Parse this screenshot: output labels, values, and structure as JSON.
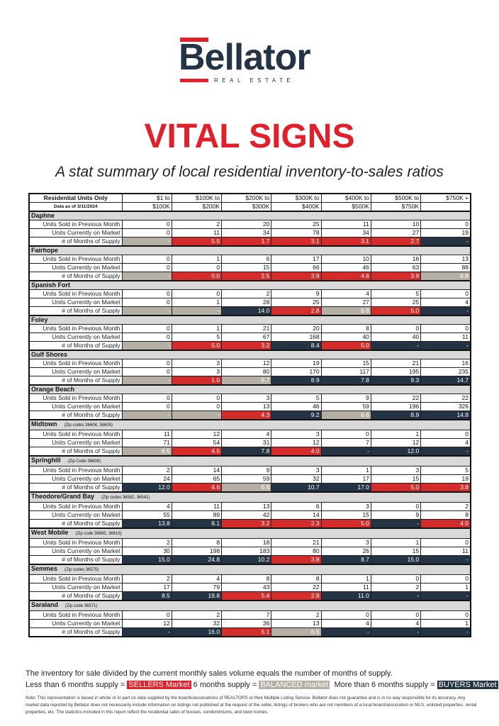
{
  "logo": {
    "name": "Bellator",
    "tagline": "REAL ESTATE"
  },
  "title": "VITAL SIGNS",
  "subtitle": "A stat summary of local residential inventory-to-sales ratios",
  "colors": {
    "sellers": "#d42b2b",
    "balanced": "#b6afa6",
    "buyers": "#243444",
    "title": "#e0202a",
    "navy": "#243444"
  },
  "table": {
    "header_label": "Residential Units Only",
    "data_date": "Data as of 3/11/2024",
    "columns": [
      [
        "$1 to",
        "$100K"
      ],
      [
        "$100K to",
        "$200K"
      ],
      [
        "$200K to",
        "$300K"
      ],
      [
        "$300K to",
        "$400K"
      ],
      [
        "$400K to",
        "$500K"
      ],
      [
        "$500K to",
        "$750K"
      ],
      [
        "$750K +",
        ""
      ]
    ],
    "row_labels": [
      "Units Sold in Previous Month",
      "Units Currently on Market",
      "# of Months of Supply"
    ],
    "sections": [
      {
        "name": "Daphne",
        "zip": "",
        "sold": [
          "0",
          "2",
          "20",
          "25",
          "11",
          "10",
          "0"
        ],
        "market": [
          "0",
          "11",
          "34",
          "78",
          "34",
          "27",
          "19"
        ],
        "supply": [
          "-",
          "5.5",
          "1.7",
          "3.1",
          "3.1",
          "2.7",
          "-"
        ],
        "status": [
          "B",
          "S",
          "S",
          "S",
          "S",
          "S",
          "Y"
        ]
      },
      {
        "name": "Fairhope",
        "zip": "",
        "sold": [
          "0",
          "1",
          "6",
          "17",
          "10",
          "16",
          "13"
        ],
        "market": [
          "0",
          "0",
          "15",
          "66",
          "46",
          "63",
          "88"
        ],
        "supply": [
          "-",
          "0.0",
          "2.5",
          "3.9",
          "4.6",
          "3.9",
          "6.8"
        ],
        "status": [
          "B",
          "S",
          "S",
          "S",
          "S",
          "S",
          "B"
        ]
      },
      {
        "name": "Spanish Fort",
        "zip": "",
        "sold": [
          "0",
          "0",
          "2",
          "9",
          "4",
          "5",
          "0"
        ],
        "market": [
          "0",
          "1",
          "28",
          "25",
          "27",
          "25",
          "4"
        ],
        "supply": [
          "-",
          "-",
          "14.0",
          "2.8",
          "6.8",
          "5.0",
          "-"
        ],
        "status": [
          "B",
          "B",
          "Y",
          "S",
          "B",
          "S",
          "Y"
        ]
      },
      {
        "name": "Foley",
        "zip": "",
        "sold": [
          "0",
          "1",
          "21",
          "20",
          "8",
          "0",
          "0"
        ],
        "market": [
          "0",
          "5",
          "67",
          "168",
          "40",
          "40",
          "11"
        ],
        "supply": [
          "-",
          "5.0",
          "3.2",
          "8.4",
          "5.0",
          "-",
          "-"
        ],
        "status": [
          "B",
          "S",
          "S",
          "Y",
          "S",
          "Y",
          "Y"
        ]
      },
      {
        "name": "Gulf Shores",
        "zip": "",
        "sold": [
          "0",
          "3",
          "12",
          "19",
          "15",
          "21",
          "16"
        ],
        "market": [
          "0",
          "3",
          "80",
          "170",
          "117",
          "195",
          "235"
        ],
        "supply": [
          "-",
          "1.0",
          "6.7",
          "8.9",
          "7.8",
          "9.3",
          "14.7"
        ],
        "status": [
          "B",
          "S",
          "B",
          "Y",
          "Y",
          "Y",
          "Y"
        ]
      },
      {
        "name": "Orange Beach",
        "zip": "",
        "sold": [
          "0",
          "0",
          "3",
          "5",
          "9",
          "22",
          "22"
        ],
        "market": [
          "0",
          "0",
          "13",
          "46",
          "59",
          "196",
          "326"
        ],
        "supply": [
          "-",
          "-",
          "4.3",
          "9.2",
          "6.6",
          "8.9",
          "14.8"
        ],
        "status": [
          "B",
          "B",
          "S",
          "Y",
          "B",
          "Y",
          "Y"
        ]
      },
      {
        "name": "Midtown",
        "zip": "(Zip codes 36604, 36605)",
        "sold": [
          "11",
          "12",
          "4",
          "3",
          "0",
          "1",
          "0"
        ],
        "market": [
          "71",
          "54",
          "31",
          "12",
          "7",
          "12",
          "4"
        ],
        "supply": [
          "6.5",
          "4.5",
          "7.8",
          "4.0",
          "-",
          "12.0",
          "-"
        ],
        "status": [
          "B",
          "S",
          "Y",
          "S",
          "Y",
          "Y",
          "Y"
        ]
      },
      {
        "name": "Springhill",
        "zip": "(Zip Code 36608)",
        "sold": [
          "2",
          "14",
          "9",
          "3",
          "1",
          "3",
          "5"
        ],
        "market": [
          "24",
          "65",
          "59",
          "32",
          "17",
          "15",
          "19"
        ],
        "supply": [
          "12.0",
          "4.6",
          "6.6",
          "10.7",
          "17.0",
          "5.0",
          "3.8"
        ],
        "status": [
          "Y",
          "S",
          "B",
          "Y",
          "Y",
          "S",
          "S"
        ]
      },
      {
        "name": "Theodore/Grand Bay",
        "zip": "(Zip codes 36582, 36541)",
        "sold": [
          "4",
          "11",
          "13",
          "6",
          "3",
          "0",
          "2"
        ],
        "market": [
          "55",
          "89",
          "42",
          "14",
          "15",
          "9",
          "8"
        ],
        "supply": [
          "13.8",
          "8.1",
          "3.2",
          "2.3",
          "5.0",
          "-",
          "4.0"
        ],
        "status": [
          "Y",
          "Y",
          "S",
          "S",
          "S",
          "Y",
          "S"
        ]
      },
      {
        "name": "West Mobile",
        "zip": "(Zip code 36695, 36619)",
        "sold": [
          "2",
          "8",
          "18",
          "21",
          "3",
          "1",
          "0"
        ],
        "market": [
          "30",
          "198",
          "183",
          "80",
          "26",
          "15",
          "11"
        ],
        "supply": [
          "15.0",
          "24.8",
          "10.2",
          "3.8",
          "8.7",
          "15.0",
          "-"
        ],
        "status": [
          "Y",
          "Y",
          "Y",
          "S",
          "Y",
          "Y",
          "Y"
        ]
      },
      {
        "name": "Semmes",
        "zip": "(Zip codes 36575)",
        "sold": [
          "2",
          "4",
          "8",
          "8",
          "1",
          "0",
          "0"
        ],
        "market": [
          "17",
          "79",
          "43",
          "22",
          "11",
          "2",
          "1"
        ],
        "supply": [
          "8.5",
          "19.8",
          "5.4",
          "2.8",
          "11.0",
          "-",
          "-"
        ],
        "status": [
          "Y",
          "Y",
          "S",
          "S",
          "Y",
          "Y",
          "Y"
        ]
      },
      {
        "name": "Saraland",
        "zip": "(Zip code 36571)",
        "sold": [
          "0",
          "2",
          "7",
          "2",
          "0",
          "0",
          "0"
        ],
        "market": [
          "12",
          "32",
          "36",
          "13",
          "4",
          "4",
          "1"
        ],
        "supply": [
          "-",
          "16.0",
          "5.1",
          "6.5",
          "-",
          "-",
          "-"
        ],
        "status": [
          "Y",
          "Y",
          "S",
          "B",
          "Y",
          "Y",
          "Y"
        ]
      }
    ]
  },
  "footer": {
    "line1": "The inventory for sale divided by the current monthly sales volume equals the number of months of supply.",
    "less_prefix": "Less than 6 months supply =",
    "sellers_label": "SELLERS Market",
    "six_prefix": "6 months supply =",
    "balanced_label": "BALANCED market",
    "more_prefix": "More than 6 months supply =",
    "buyers_label": "BUYERS Market",
    "note": "Note: This representation is based in whole or in part on data supplied by the boards/associations of REALTORS or their Multiple Listing Service. Bellator does not guarantee and is in no way responsible for its accuracy. Any market data reported by Bellator does not necessarily include information on listings not published at the request of the seller, listings of brokers who are not members of a local board/association or MLS, unlisted properties, rental properties, etc. The statistics included in this report reflect the residential sales of houses, condominiums, and town homes."
  }
}
